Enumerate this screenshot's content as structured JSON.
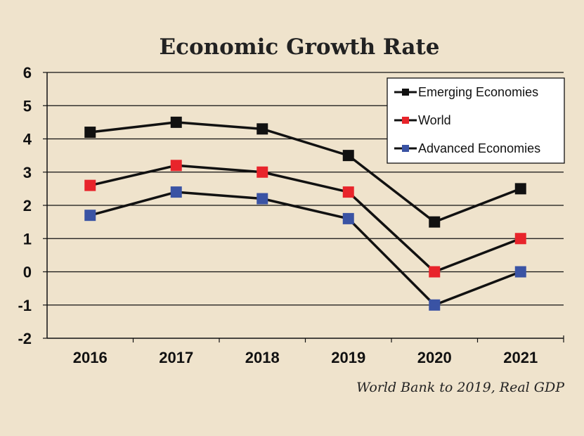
{
  "colors": {
    "background": "#efe3cc",
    "line": "#111111",
    "emerging": "#111111",
    "world": "#e8242b",
    "advanced": "#3a53a4"
  },
  "chart_data": {
    "type": "line",
    "title": "Economic Growth Rate",
    "source_note": "World Bank to 2019, Real GDP",
    "categories": [
      "2016",
      "2017",
      "2018",
      "2019",
      "2020",
      "2021"
    ],
    "y_ticks": [
      "6",
      "5",
      "4",
      "3",
      "2",
      "1",
      "0",
      "-1",
      "-2"
    ],
    "ylim": [
      -2,
      6
    ],
    "grid": "horizontal",
    "legend_position": "top-right",
    "marker": "square",
    "series": [
      {
        "name": "Emerging Economies",
        "color": "#111111",
        "values": [
          4.2,
          4.5,
          4.3,
          3.5,
          1.5,
          2.5
        ]
      },
      {
        "name": "World",
        "color": "#e8242b",
        "values": [
          2.6,
          3.2,
          3.0,
          2.4,
          0.0,
          1.0
        ]
      },
      {
        "name": "Advanced Economies",
        "color": "#3a53a4",
        "values": [
          1.7,
          2.4,
          2.2,
          1.6,
          -1.0,
          0.0
        ]
      }
    ]
  }
}
